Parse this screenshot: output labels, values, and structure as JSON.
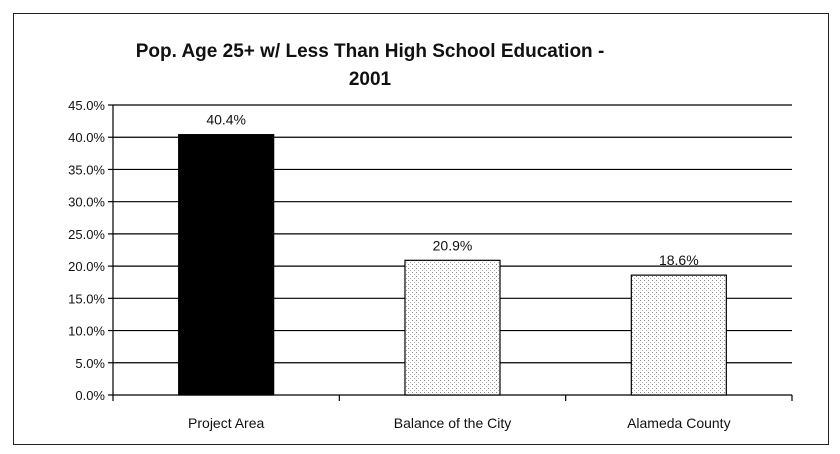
{
  "chart_data": {
    "type": "bar",
    "title_line1": "Pop. Age 25+ w/ Less Than High School Education -",
    "title_line2": "2001",
    "categories": [
      "Project Area",
      "Balance of the City",
      "Alameda County"
    ],
    "values": [
      40.4,
      20.9,
      18.6
    ],
    "data_labels": [
      "40.4%",
      "20.9%",
      "18.6%"
    ],
    "bar_fills": [
      "#000000",
      "dotted",
      "dotted"
    ],
    "ylim": [
      0,
      45
    ],
    "y_ticks": [
      0,
      5,
      10,
      15,
      20,
      25,
      30,
      35,
      40,
      45
    ],
    "y_tick_labels": [
      "0.0%",
      "5.0%",
      "10.0%",
      "15.0%",
      "20.0%",
      "25.0%",
      "30.0%",
      "35.0%",
      "40.0%",
      "45.0%"
    ],
    "xlabel": "",
    "ylabel": "",
    "grid": true,
    "legend": "none"
  },
  "colors": {
    "grid": "#000000",
    "axis": "#000000",
    "bar_solid": "#000000",
    "bar_dotted_bg": "#ffffff",
    "bar_dotted_dots": "#7a7a7a"
  }
}
